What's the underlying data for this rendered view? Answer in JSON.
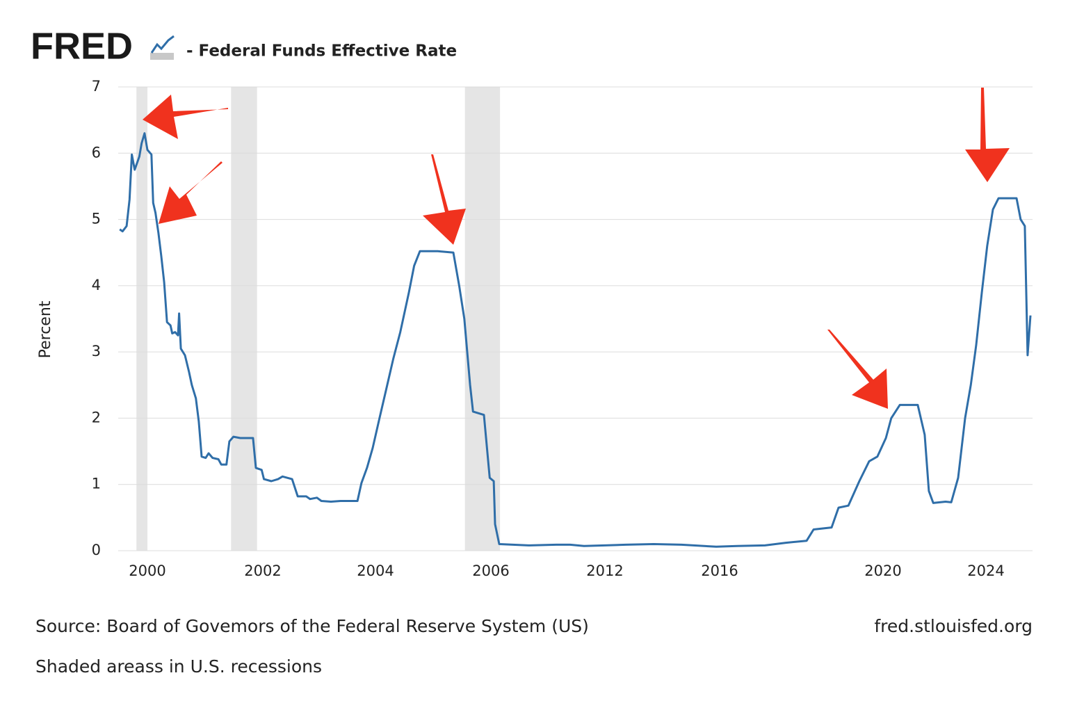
{
  "chart_data": {
    "type": "line",
    "brand": "FRED",
    "title": "- Federal Funds Effective Rate",
    "ylabel": "Percent",
    "source": "Source:  Board of Govemors of the Federal Reserve System (US)",
    "site": "fred.stlouisfed.org",
    "note": "Shaded areass in U.S. recessions",
    "color": "#2f6ea8",
    "recession_color": "#e5e5e5",
    "recessions": [
      [
        1999.81,
        2000.0
      ],
      [
        2001.45,
        2001.9
      ],
      [
        2005.55,
        2006.48
      ]
    ],
    "grid": true,
    "xlim": [
      1999.5,
      2025.8
    ],
    "xticks": [
      2000,
      2002,
      2004,
      2006,
      2012,
      2016,
      2020,
      2024
    ],
    "ylim": [
      0,
      7
    ],
    "yticks": [
      0,
      1,
      2,
      3,
      4,
      5,
      6,
      7
    ],
    "x": [
      1999.52,
      1999.57,
      1999.64,
      1999.69,
      1999.73,
      1999.78,
      1999.86,
      1999.9,
      1999.95,
      2000.0,
      2000.07,
      2000.1,
      2000.14,
      2000.19,
      2000.24,
      2000.29,
      2000.34,
      2000.4,
      2000.43,
      2000.48,
      2000.53,
      2000.55,
      2000.58,
      2000.65,
      2000.72,
      2000.77,
      2000.84,
      2000.89,
      2000.94,
      2001.01,
      2001.06,
      2001.13,
      2001.23,
      2001.28,
      2001.37,
      2001.42,
      2001.49,
      2001.61,
      2001.83,
      2001.88,
      2001.98,
      2002.02,
      2002.15,
      2002.27,
      2002.35,
      2002.52,
      2002.62,
      2002.77,
      2002.84,
      2002.96,
      2003.04,
      2003.21,
      2003.38,
      2003.68,
      2003.75,
      2003.85,
      2003.95,
      2004.07,
      2004.19,
      2004.31,
      2004.43,
      2004.58,
      2004.67,
      2004.77,
      2005.08,
      2005.35,
      2005.45,
      2005.54,
      2005.64,
      2005.69,
      2005.88,
      2005.98,
      2006.15,
      2006.22,
      2006.44,
      2007.98,
      2009.44,
      2010.17,
      2010.9,
      2012.0,
      2012.73,
      2013.7,
      2014.67,
      2015.88,
      2016.43,
      2017.11,
      2017.62,
      2018.13,
      2018.3,
      2018.74,
      2018.91,
      2019.15,
      2019.42,
      2019.66,
      2019.86,
      2020.11,
      2020.32,
      2020.65,
      2021.35,
      2021.62,
      2021.78,
      2021.95,
      2022.43,
      2022.65,
      2022.92,
      2023.19,
      2023.41,
      2023.62,
      2023.84,
      2024.05,
      2024.27,
      2024.49,
      2025.19,
      2025.35,
      2025.51,
      2025.62,
      2025.73
    ],
    "values": [
      4.85,
      4.82,
      4.9,
      5.3,
      5.98,
      5.75,
      5.95,
      6.15,
      6.3,
      6.05,
      5.98,
      5.25,
      5.1,
      4.8,
      4.45,
      4.05,
      3.45,
      3.4,
      3.28,
      3.3,
      3.25,
      3.58,
      3.05,
      2.95,
      2.7,
      2.5,
      2.3,
      1.95,
      1.42,
      1.4,
      1.47,
      1.4,
      1.38,
      1.3,
      1.3,
      1.65,
      1.72,
      1.7,
      1.7,
      1.25,
      1.22,
      1.08,
      1.05,
      1.08,
      1.12,
      1.08,
      0.82,
      0.82,
      0.78,
      0.8,
      0.75,
      0.74,
      0.75,
      0.75,
      1.02,
      1.25,
      1.55,
      2.0,
      2.45,
      2.9,
      3.3,
      3.9,
      4.3,
      4.52,
      4.52,
      4.5,
      4.0,
      3.5,
      2.5,
      2.1,
      2.05,
      1.1,
      1.05,
      0.4,
      0.1,
      0.08,
      0.09,
      0.09,
      0.07,
      0.08,
      0.09,
      0.1,
      0.09,
      0.06,
      0.07,
      0.08,
      0.12,
      0.15,
      0.32,
      0.35,
      0.65,
      0.68,
      1.05,
      1.35,
      1.42,
      1.7,
      2.0,
      2.2,
      2.2,
      1.75,
      0.9,
      0.72,
      0.74,
      0.73,
      1.1,
      2.0,
      2.5,
      3.1,
      3.9,
      4.6,
      5.15,
      5.32,
      5.32,
      5.0,
      4.9,
      2.95,
      3.55
    ]
  }
}
